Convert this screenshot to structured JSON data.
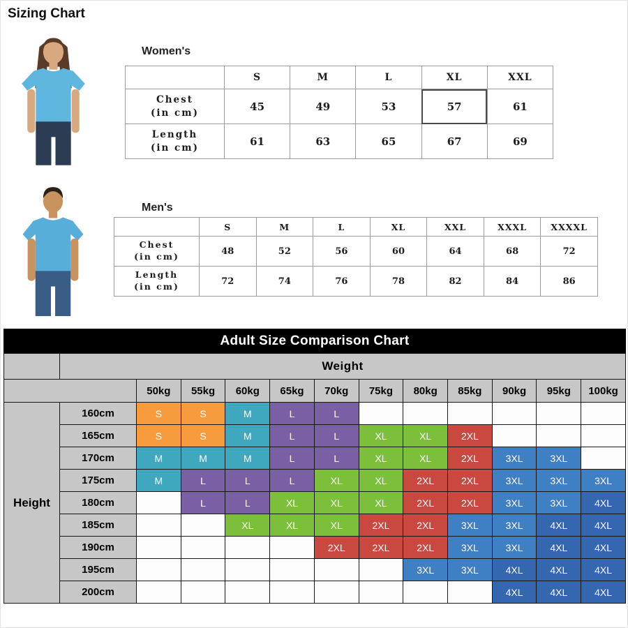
{
  "page": {
    "title": "Sizing Chart"
  },
  "models": {
    "women_photo": "woman-in-light-blue-tshirt",
    "men_photo": "man-in-light-blue-tshirt"
  },
  "chart_data": [
    {
      "type": "table",
      "name": "womens_sizes",
      "section_label": "Women's",
      "size_headers": [
        "S",
        "M",
        "L",
        "XL",
        "XXL"
      ],
      "rows": [
        {
          "label_lines": [
            "Chest",
            "(in cm)"
          ],
          "values": [
            45,
            49,
            53,
            57,
            61
          ]
        },
        {
          "label_lines": [
            "Length",
            "(in cm)"
          ],
          "values": [
            61,
            63,
            65,
            67,
            69
          ]
        }
      ],
      "highlight": {
        "row_index": 0,
        "col_index": 3,
        "value": 57
      }
    },
    {
      "type": "table",
      "name": "mens_sizes",
      "section_label": "Men's",
      "size_headers": [
        "S",
        "M",
        "L",
        "XL",
        "XXL",
        "XXXL",
        "XXXXL"
      ],
      "rows": [
        {
          "label_lines": [
            "Chest",
            "(in cm)"
          ],
          "values": [
            48,
            52,
            56,
            60,
            64,
            68,
            72
          ]
        },
        {
          "label_lines": [
            "Length",
            "(in cm)"
          ],
          "values": [
            72,
            74,
            76,
            78,
            82,
            84,
            86
          ]
        }
      ]
    },
    {
      "type": "heatmap",
      "name": "adult_size_comparison",
      "title": "Adult Size Comparison Chart",
      "x_label": "Weight",
      "y_label": "Height",
      "x_categories": [
        "50kg",
        "55kg",
        "60kg",
        "65kg",
        "70kg",
        "75kg",
        "80kg",
        "85kg",
        "90kg",
        "95kg",
        "100kg"
      ],
      "y_categories": [
        "160cm",
        "165cm",
        "170cm",
        "175cm",
        "180cm",
        "185cm",
        "190cm",
        "195cm",
        "200cm"
      ],
      "cells": [
        [
          "S",
          "S",
          "M",
          "L",
          "L",
          "",
          "",
          "",
          "",
          "",
          ""
        ],
        [
          "S",
          "S",
          "M",
          "L",
          "L",
          "XL",
          "XL",
          "2XL",
          "",
          "",
          ""
        ],
        [
          "M",
          "M",
          "M",
          "L",
          "L",
          "XL",
          "XL",
          "2XL",
          "3XL",
          "3XL",
          ""
        ],
        [
          "M",
          "L",
          "L",
          "L",
          "XL",
          "XL",
          "2XL",
          "2XL",
          "3XL",
          "3XL",
          "3XL"
        ],
        [
          "",
          "L",
          "L",
          "XL",
          "XL",
          "XL",
          "2XL",
          "2XL",
          "3XL",
          "3XL",
          "4XL"
        ],
        [
          "",
          "",
          "XL",
          "XL",
          "XL",
          "2XL",
          "2XL",
          "3XL",
          "3XL",
          "4XL",
          "4XL"
        ],
        [
          "",
          "",
          "",
          "",
          "2XL",
          "2XL",
          "2XL",
          "3XL",
          "3XL",
          "4XL",
          "4XL"
        ],
        [
          "",
          "",
          "",
          "",
          "",
          "",
          "3XL",
          "3XL",
          "4XL",
          "4XL",
          "4XL"
        ],
        [
          "",
          "",
          "",
          "",
          "",
          "",
          "",
          "",
          "4XL",
          "4XL",
          "4XL"
        ]
      ],
      "size_colors": {
        "S": "#F79B3F",
        "M": "#3FA8BE",
        "L": "#7A5FA5",
        "XL": "#7CBF3B",
        "2XL": "#C9483F",
        "3XL": "#3F7FC4",
        "4XL": "#3566B0"
      }
    }
  ]
}
